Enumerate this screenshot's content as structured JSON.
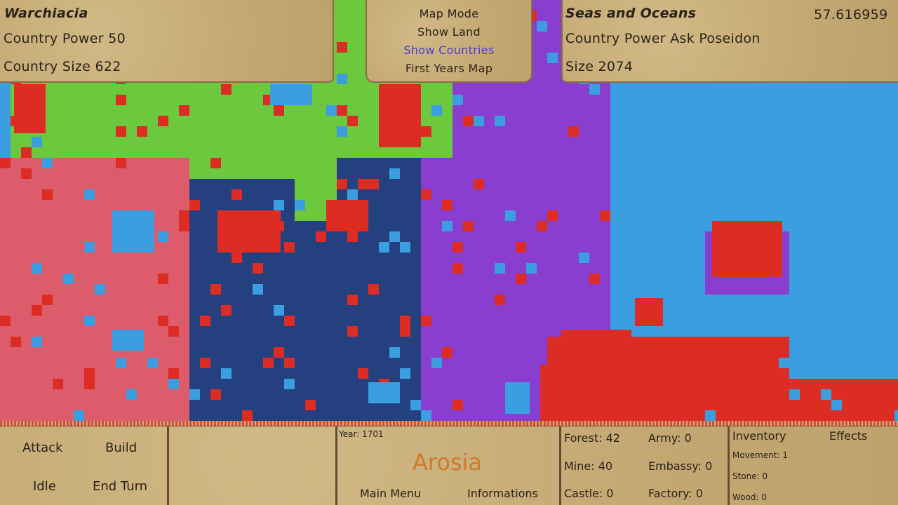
{
  "left_panel": {
    "country_name": "Warchiacia",
    "power": "Country Power 50",
    "size": "Country Size 622"
  },
  "right_panel": {
    "country_name": "Seas and Oceans",
    "value": "57.616959",
    "power": "Country Power Ask Poseidon",
    "size": "Size 2074"
  },
  "map_mode": {
    "title": "Map Mode",
    "options": [
      "Show Land",
      "Show Countries",
      "First Years Map"
    ],
    "selected": "Show Countries",
    "selected_color": "#4a3ad0"
  },
  "actions": {
    "attack": "Attack",
    "build": "Build",
    "idle": "Idle",
    "end_turn": "End Turn"
  },
  "center": {
    "year": "Year: 1701",
    "country": "Arosia",
    "country_color": "#d0782c",
    "main_menu": "Main Menu",
    "informations": "Informations"
  },
  "stats": {
    "forest": "Forest: 42",
    "mine": "Mine: 40",
    "castle": "Castle: 0",
    "army": "Army: 0",
    "embassy": "Embassy: 0",
    "factory": "Factory: 0"
  },
  "inventory": {
    "tab_inventory": "Inventory",
    "tab_effects": "Effects",
    "movement": "Movement: 1",
    "stone": "Stone: 0",
    "wood": "Wood: 0"
  },
  "colors": {
    "ocean": "#3a9ee0",
    "green": "#6cc83c",
    "pink": "#dc5c6c",
    "navy": "#25407e",
    "purple": "#8a3ed0",
    "red": "#dc2c24",
    "parchment": "#c9b07a"
  }
}
